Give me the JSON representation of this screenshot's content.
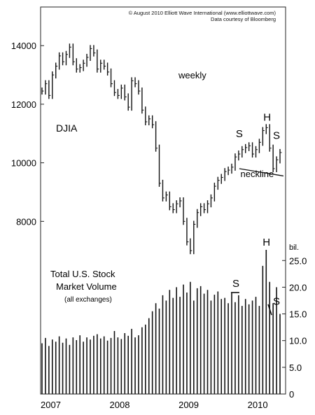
{
  "credits": {
    "line1": "© August 2010 Elliott Wave International (www.elliottwave.com)",
    "line2": "Data courtesy of Bloomberg"
  },
  "chart_data": [
    {
      "type": "line",
      "title": "DJIA",
      "subtitle": "weekly",
      "y_ticks": [
        8000,
        10000,
        12000,
        14000
      ],
      "ylim": [
        6000,
        15200
      ],
      "x_ticks": [
        "2007",
        "2008",
        "2009",
        "2010"
      ],
      "xlim": [
        2007.0,
        2010.45
      ],
      "annotations": [
        {
          "text": "S",
          "x": 2009.85,
          "y": 10750
        },
        {
          "text": "H",
          "x": 2010.26,
          "y": 11250
        },
        {
          "text": "S",
          "x": 2010.55,
          "y": 10700
        },
        {
          "text": "neckline",
          "x": 2010.1,
          "y": 9700
        }
      ],
      "series": [
        {
          "x": [
            2007.0,
            2007.05,
            2007.1,
            2007.15,
            2007.2,
            2007.25,
            2007.3,
            2007.35,
            2007.4,
            2007.45,
            2007.5,
            2007.55,
            2007.6,
            2007.65,
            2007.7,
            2007.75,
            2007.8,
            2007.85,
            2007.9,
            2007.95,
            2008.0,
            2008.05,
            2008.1,
            2008.15,
            2008.2,
            2008.25,
            2008.3,
            2008.35,
            2008.4,
            2008.45,
            2008.5,
            2008.55,
            2008.6,
            2008.65,
            2008.7,
            2008.75,
            2008.8,
            2008.85,
            2008.9,
            2008.95,
            2009.0,
            2009.05,
            2009.1,
            2009.15,
            2009.2,
            2009.25,
            2009.3,
            2009.35,
            2009.4,
            2009.45,
            2009.5,
            2009.55,
            2009.6,
            2009.65,
            2009.7,
            2009.75,
            2009.8,
            2009.85,
            2009.9,
            2009.95,
            2010.0,
            2010.05,
            2010.1,
            2010.15,
            2010.2,
            2010.25,
            2010.3,
            2010.35,
            2010.4,
            2010.45
          ],
          "values": [
            12450,
            12700,
            12300,
            13000,
            13300,
            13650,
            13450,
            13700,
            13950,
            13450,
            13200,
            13250,
            13400,
            13600,
            13900,
            13750,
            13200,
            13400,
            13300,
            13100,
            12700,
            12400,
            12300,
            12550,
            12250,
            11900,
            12800,
            12700,
            12450,
            11800,
            11400,
            11500,
            11300,
            10500,
            9300,
            8800,
            8900,
            8500,
            8400,
            8600,
            8700,
            8000,
            7300,
            7000,
            7900,
            8300,
            8500,
            8400,
            8600,
            8800,
            9200,
            9400,
            9500,
            9700,
            9750,
            9850,
            10200,
            10300,
            10450,
            10520,
            10580,
            10300,
            10450,
            10700,
            11100,
            11200,
            10500,
            9800,
            10100,
            10350
          ]
        }
      ]
    },
    {
      "type": "bar",
      "title": "Total U.S. Stock Market Volume",
      "subtitle": "(all exchanges)",
      "ylabel": "bil.",
      "y_ticks": [
        "0",
        "5.0",
        "10.0",
        "15.0",
        "20.0",
        "25.0"
      ],
      "ylim": [
        0,
        27
      ],
      "annotations": [
        {
          "text": "S",
          "x": 2009.8,
          "y": 19.5
        },
        {
          "text": "H",
          "x": 2010.25,
          "y": 27
        },
        {
          "text": "S",
          "x": 2010.55,
          "y": 17
        }
      ],
      "series": [
        {
          "x": [
            2007.0,
            2007.05,
            2007.1,
            2007.15,
            2007.2,
            2007.25,
            2007.3,
            2007.35,
            2007.4,
            2007.45,
            2007.5,
            2007.55,
            2007.6,
            2007.65,
            2007.7,
            2007.75,
            2007.8,
            2007.85,
            2007.9,
            2007.95,
            2008.0,
            2008.05,
            2008.1,
            2008.15,
            2008.2,
            2008.25,
            2008.3,
            2008.35,
            2008.4,
            2008.45,
            2008.5,
            2008.55,
            2008.6,
            2008.65,
            2008.7,
            2008.75,
            2008.8,
            2008.85,
            2008.9,
            2008.95,
            2009.0,
            2009.05,
            2009.1,
            2009.15,
            2009.2,
            2009.25,
            2009.3,
            2009.35,
            2009.4,
            2009.45,
            2009.5,
            2009.55,
            2009.6,
            2009.65,
            2009.7,
            2009.75,
            2009.8,
            2009.85,
            2009.9,
            2009.95,
            2010.0,
            2010.05,
            2010.1,
            2010.15,
            2010.2,
            2010.25,
            2010.3,
            2010.35,
            2010.4,
            2010.45
          ],
          "values": [
            9.5,
            10.5,
            9.0,
            10.2,
            9.8,
            10.8,
            9.6,
            10.4,
            9.2,
            10.6,
            10.1,
            11.0,
            9.8,
            10.6,
            10.2,
            10.9,
            11.2,
            10.4,
            10.8,
            10.0,
            10.5,
            11.8,
            10.6,
            10.3,
            11.4,
            10.9,
            12.2,
            10.6,
            11.0,
            12.5,
            13.0,
            14.2,
            15.5,
            17.0,
            16.0,
            18.5,
            17.5,
            19.5,
            18.0,
            20.0,
            18.2,
            20.5,
            19.0,
            21.0,
            17.5,
            19.8,
            20.2,
            18.8,
            19.5,
            17.5,
            18.6,
            19.2,
            17.8,
            18.0,
            17.0,
            19.0,
            17.2,
            18.5,
            16.5,
            17.8,
            16.8,
            17.5,
            18.2,
            16.5,
            24.0,
            27.0,
            21.0,
            17.0,
            20.0,
            15.0
          ]
        }
      ]
    }
  ]
}
